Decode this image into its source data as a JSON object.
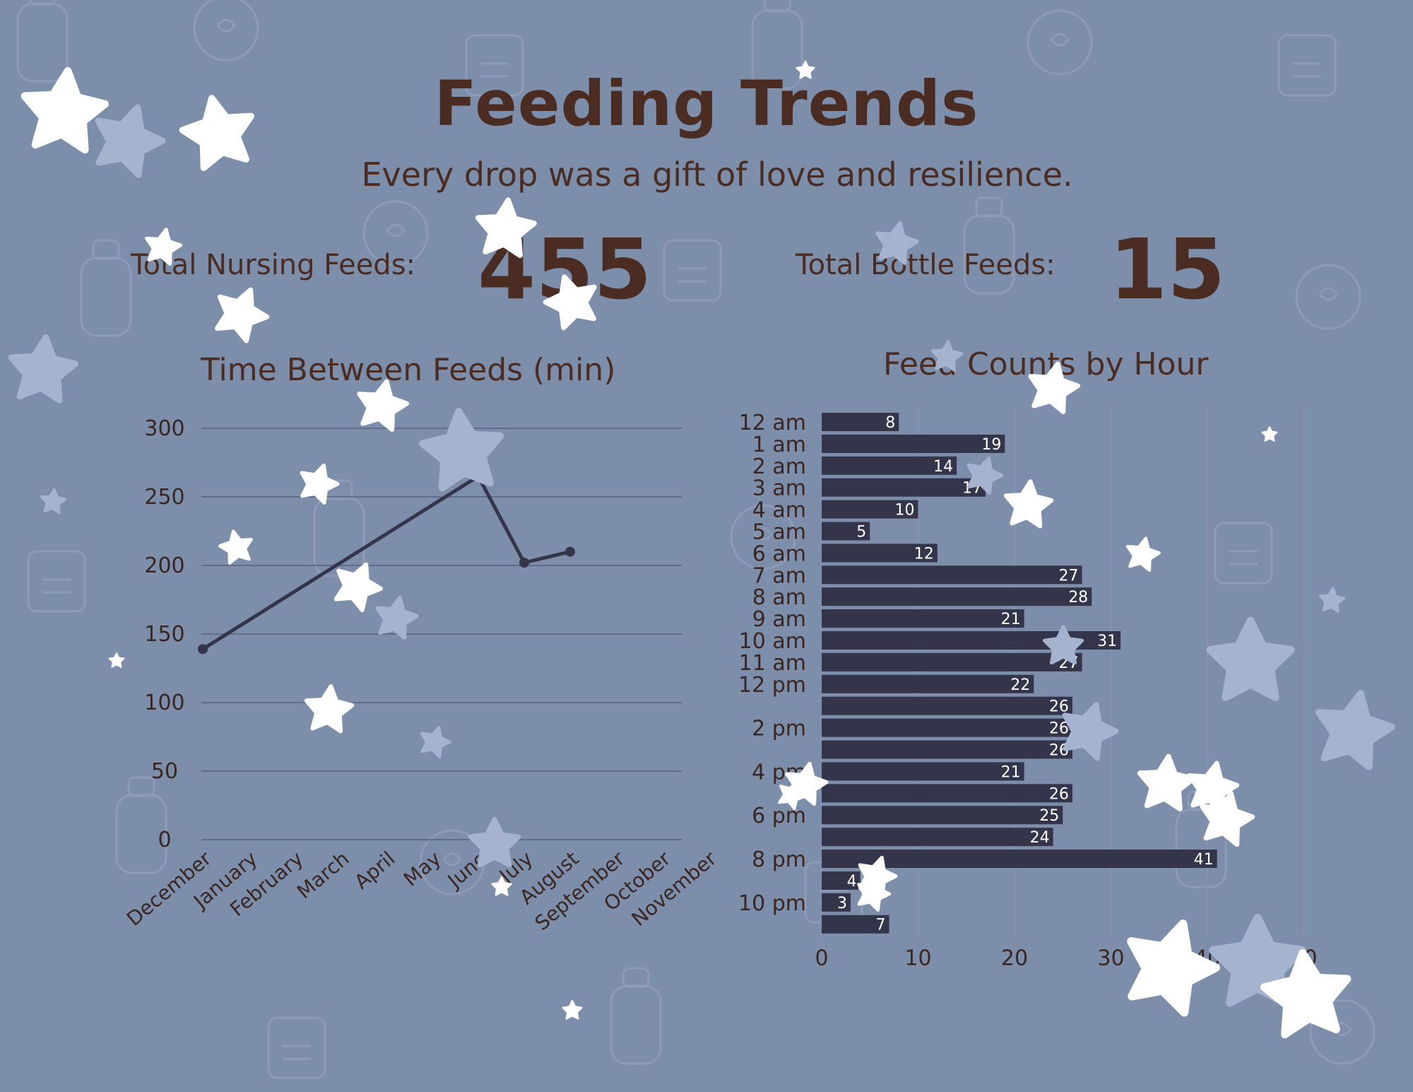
{
  "header": {
    "title": "Feeding Trends",
    "subtitle": "Every drop was a gift of love and resilience."
  },
  "stats": {
    "nursing_label": "Total Nursing Feeds:",
    "nursing_value": "455",
    "bottle_label": "Total Bottle Feeds:",
    "bottle_value": "15"
  },
  "colors": {
    "background": "#7d8eab",
    "text": "#4a2c22",
    "bars": "#34354a",
    "line": "#34354a",
    "gridline": "#5f6d86",
    "star_white": "#ffffff",
    "star_light": "#a5b3cf"
  },
  "chart_data": [
    {
      "type": "line",
      "title": "Time Between Feeds (min)",
      "x": [
        "December",
        "January",
        "February",
        "March",
        "April",
        "May",
        "June",
        "July",
        "August",
        "September",
        "October",
        "November"
      ],
      "series": [
        {
          "values": [
            139,
            null,
            null,
            null,
            null,
            null,
            265,
            202,
            210,
            null,
            null,
            null
          ]
        }
      ],
      "yticks": [
        0,
        50,
        100,
        150,
        200,
        250,
        300
      ],
      "ylim": [
        0,
        300
      ],
      "grid": true
    },
    {
      "type": "bar",
      "orientation": "horizontal",
      "title": "Feed Counts by Hour",
      "categories": [
        "12 am",
        "1 am",
        "2 am",
        "3 am",
        "4 am",
        "5 am",
        "6 am",
        "7 am",
        "8 am",
        "9 am",
        "10 am",
        "11 am",
        "12 pm",
        "1 pm",
        "2 pm",
        "3 pm",
        "4 pm",
        "5 pm",
        "6 pm",
        "7 pm",
        "8 pm",
        "9 pm",
        "10 pm",
        "11 pm"
      ],
      "category_labels_shown": [
        "12 am",
        "1 am",
        "2 am",
        "3 am",
        "4 am",
        "5 am",
        "6 am",
        "7 am",
        "8 am",
        "9 am",
        "10 am",
        "11 am",
        "12 pm",
        "",
        "2 pm",
        "",
        "4 pm",
        "",
        "6 pm",
        "",
        "8 pm",
        "",
        "10 pm",
        ""
      ],
      "values": [
        8,
        19,
        14,
        17,
        10,
        5,
        12,
        27,
        28,
        21,
        31,
        27,
        22,
        26,
        26,
        26,
        21,
        26,
        25,
        24,
        41,
        4,
        3,
        7
      ],
      "xticks": [
        0,
        10,
        20,
        30,
        40,
        50
      ],
      "xlim": [
        0,
        52
      ],
      "grid": true
    }
  ]
}
